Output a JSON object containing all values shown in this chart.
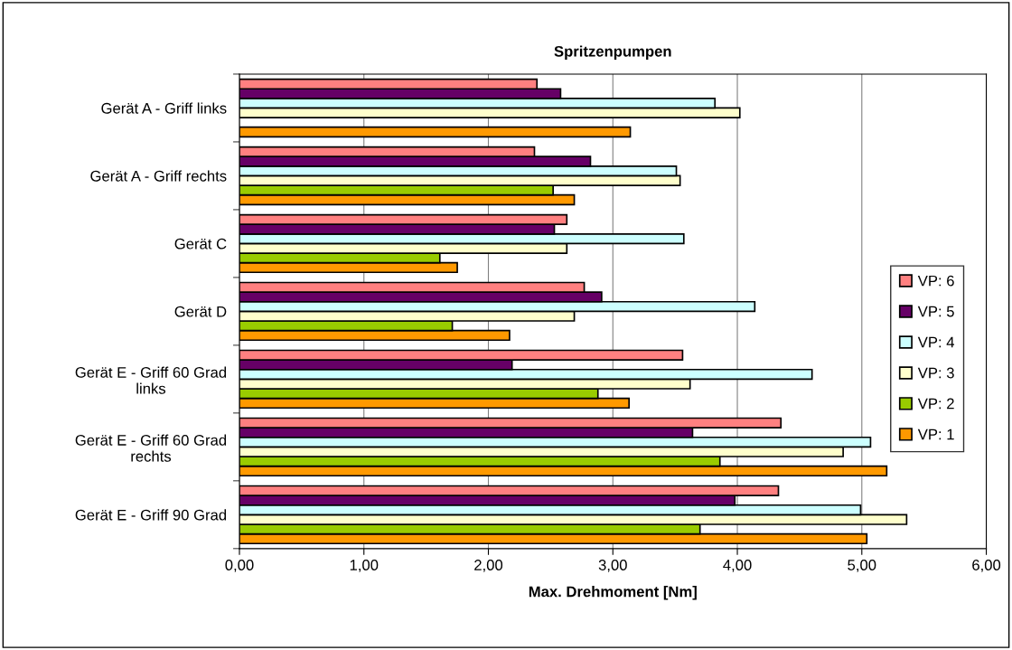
{
  "chart_data": {
    "type": "bar",
    "orientation": "horizontal",
    "title": "Spritzenpumpen",
    "xlabel": "Max. Drehmoment [Nm]",
    "categories": [
      "Gerät A - Griff links",
      "Gerät A - Griff rechts",
      "Gerät C",
      "Gerät D",
      "Gerät E - Griff 60 Grad\nlinks",
      "Gerät E - Griff 60 Grad\nrechts",
      "Gerät E - Griff 90 Grad"
    ],
    "series": [
      {
        "name": "VP: 1",
        "color": "#ff9900",
        "values": [
          3.14,
          2.69,
          1.75,
          2.17,
          3.13,
          5.2,
          5.04
        ]
      },
      {
        "name": "VP: 2",
        "color": "#99cc00",
        "values": [
          null,
          2.52,
          1.61,
          1.71,
          2.88,
          3.86,
          3.7
        ]
      },
      {
        "name": "VP: 3",
        "color": "#ffffcc",
        "values": [
          4.02,
          3.54,
          2.63,
          2.69,
          3.62,
          4.85,
          5.36
        ]
      },
      {
        "name": "VP: 4",
        "color": "#ccffff",
        "values": [
          3.82,
          3.51,
          3.57,
          4.14,
          4.6,
          5.07,
          4.99
        ]
      },
      {
        "name": "VP: 5",
        "color": "#660066",
        "values": [
          2.58,
          2.82,
          2.53,
          2.91,
          2.19,
          3.64,
          3.98
        ]
      },
      {
        "name": "VP: 6",
        "color": "#ff8080",
        "values": [
          2.39,
          2.37,
          2.63,
          2.77,
          3.56,
          4.35,
          4.33
        ]
      }
    ],
    "xlim": [
      0,
      6
    ],
    "xticks": [
      {
        "value": 0,
        "label": "0,00"
      },
      {
        "value": 1,
        "label": "1,00"
      },
      {
        "value": 2,
        "label": "2,00"
      },
      {
        "value": 3,
        "label": "3,00"
      },
      {
        "value": 4,
        "label": "4,00"
      },
      {
        "value": 5,
        "label": "5,00"
      },
      {
        "value": 6,
        "label": "6,00"
      }
    ],
    "grid": "x",
    "legend": "right"
  }
}
